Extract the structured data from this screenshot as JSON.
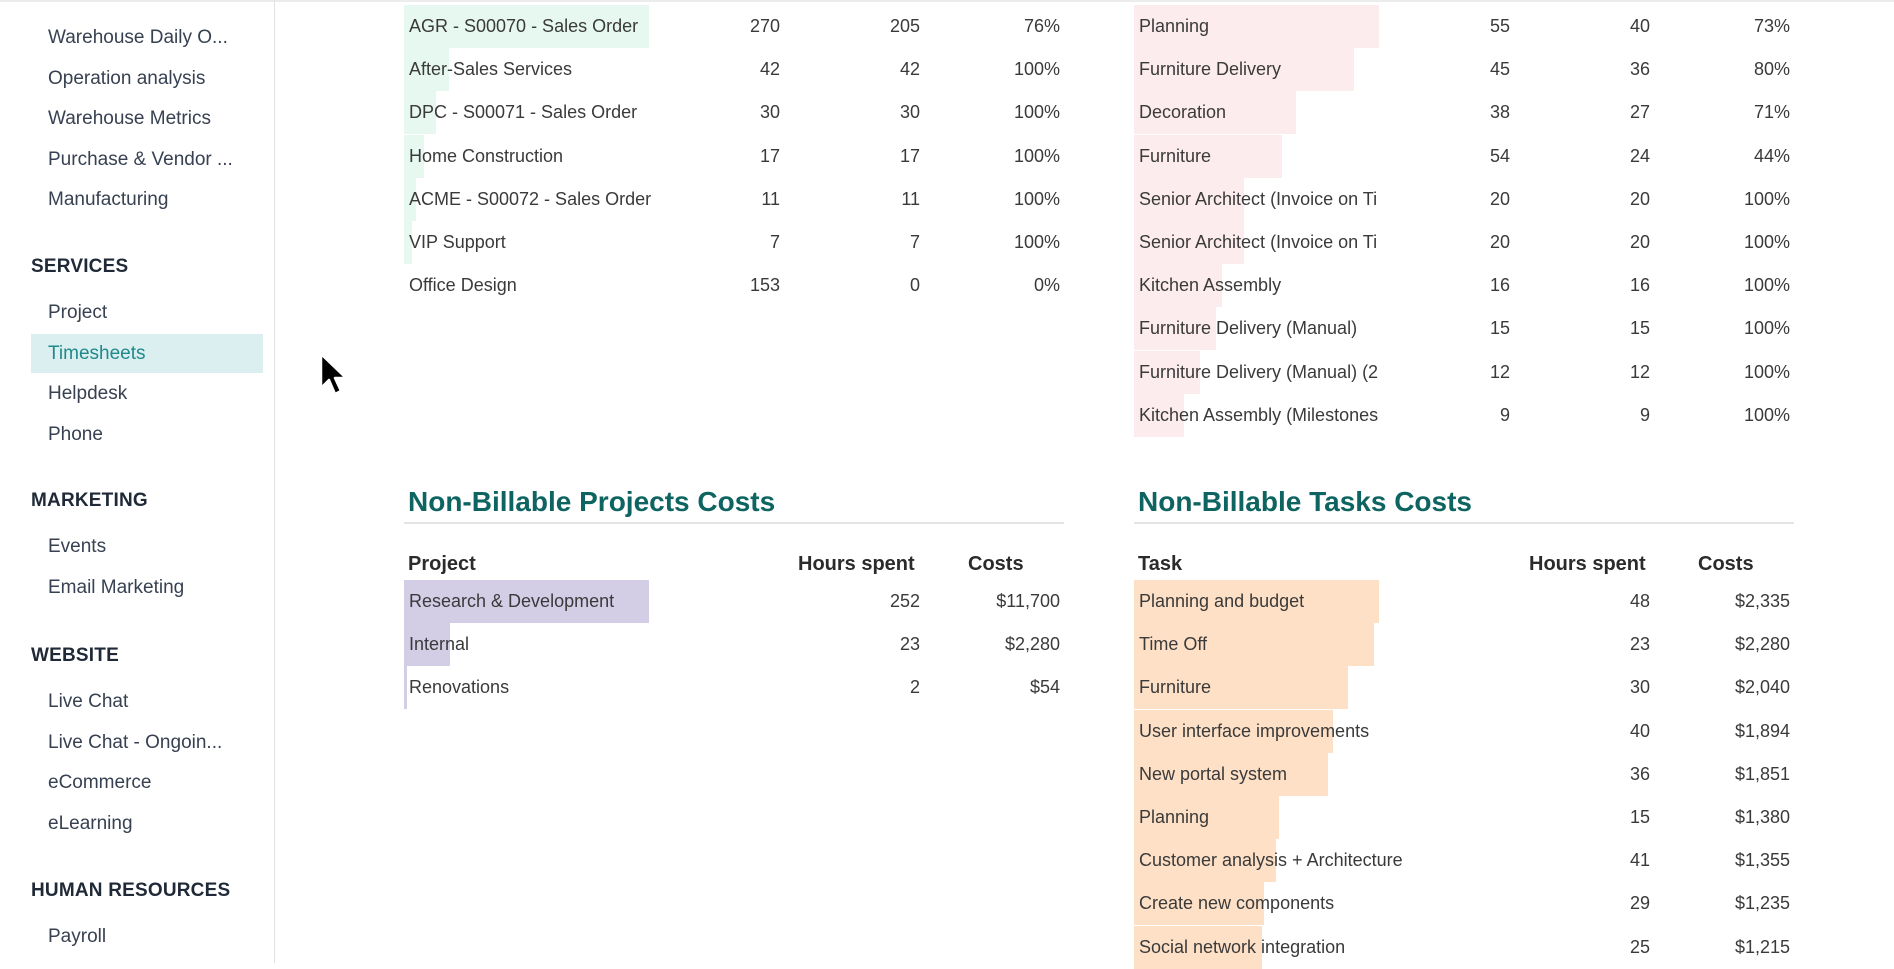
{
  "sidebar": {
    "items_top": [
      {
        "label": "Warehouse Daily O..."
      },
      {
        "label": "Operation analysis"
      },
      {
        "label": "Warehouse Metrics"
      },
      {
        "label": "Purchase & Vendor ..."
      },
      {
        "label": "Manufacturing"
      }
    ],
    "sections": [
      {
        "title": "SERVICES",
        "items": [
          {
            "label": "Project"
          },
          {
            "label": "Timesheets",
            "active": true
          },
          {
            "label": "Helpdesk"
          },
          {
            "label": "Phone"
          }
        ]
      },
      {
        "title": "MARKETING",
        "items": [
          {
            "label": "Events"
          },
          {
            "label": "Email Marketing"
          }
        ]
      },
      {
        "title": "WEBSITE",
        "items": [
          {
            "label": "Live Chat"
          },
          {
            "label": "Live Chat - Ongoin..."
          },
          {
            "label": "eCommerce"
          },
          {
            "label": "eLearning"
          }
        ]
      },
      {
        "title": "HUMAN RESOURCES",
        "items": [
          {
            "label": "Payroll"
          }
        ]
      }
    ]
  },
  "billable_projects": {
    "bar_color": "#e6f8f0",
    "rows": [
      {
        "name": "AGR - S00070 - Sales Order",
        "hours": "270",
        "billed": "205",
        "rate": "76%",
        "bar": 245
      },
      {
        "name": "After-Sales Services",
        "hours": "42",
        "billed": "42",
        "rate": "100%",
        "bar": 45
      },
      {
        "name": "DPC - S00071 - Sales Order",
        "hours": "30",
        "billed": "30",
        "rate": "100%",
        "bar": 32
      },
      {
        "name": "Home Construction",
        "hours": "17",
        "billed": "17",
        "rate": "100%",
        "bar": 20
      },
      {
        "name": "ACME - S00072 - Sales Order",
        "hours": "11",
        "billed": "11",
        "rate": "100%",
        "bar": 12
      },
      {
        "name": "VIP Support",
        "hours": "7",
        "billed": "7",
        "rate": "100%",
        "bar": 8
      },
      {
        "name": "Office Design",
        "hours": "153",
        "billed": "0",
        "rate": "0%",
        "bar": 0
      }
    ]
  },
  "billable_tasks": {
    "bar_color": "#fdeced",
    "rows": [
      {
        "name": "Planning",
        "hours": "55",
        "billed": "40",
        "rate": "73%",
        "bar": 245
      },
      {
        "name": "Furniture Delivery",
        "hours": "45",
        "billed": "36",
        "rate": "80%",
        "bar": 220
      },
      {
        "name": "Decoration",
        "hours": "38",
        "billed": "27",
        "rate": "71%",
        "bar": 162
      },
      {
        "name": "Furniture",
        "hours": "54",
        "billed": "24",
        "rate": "44%",
        "bar": 148
      },
      {
        "name": "Senior Architect (Invoice on Ti",
        "hours": "20",
        "billed": "20",
        "rate": "100%",
        "bar": 110
      },
      {
        "name": "Senior Architect (Invoice on Ti",
        "hours": "20",
        "billed": "20",
        "rate": "100%",
        "bar": 110
      },
      {
        "name": "Kitchen Assembly",
        "hours": "16",
        "billed": "16",
        "rate": "100%",
        "bar": 88
      },
      {
        "name": "Furniture Delivery (Manual)",
        "hours": "15",
        "billed": "15",
        "rate": "100%",
        "bar": 82
      },
      {
        "name": "Furniture Delivery (Manual)  (2",
        "hours": "12",
        "billed": "12",
        "rate": "100%",
        "bar": 66
      },
      {
        "name": "Kitchen Assembly (Milestones",
        "hours": "9",
        "billed": "9",
        "rate": "100%",
        "bar": 50
      }
    ]
  },
  "nonbillable_projects": {
    "title": "Non-Billable Projects Costs",
    "headers": {
      "name": "Project",
      "hours": "Hours spent",
      "costs": "Costs"
    },
    "bar_color": "#d3cde6",
    "rows": [
      {
        "name": "Research & Development",
        "hours": "252",
        "costs": "$11,700",
        "bar": 245
      },
      {
        "name": "Internal",
        "hours": "23",
        "costs": "$2,280",
        "bar": 46
      },
      {
        "name": "Renovations",
        "hours": "2",
        "costs": "$54",
        "bar": 3
      }
    ]
  },
  "nonbillable_tasks": {
    "title": "Non-Billable Tasks Costs",
    "headers": {
      "name": "Task",
      "hours": "Hours spent",
      "costs": "Costs"
    },
    "bar_color": "#fde0c6",
    "rows": [
      {
        "name": "Planning and budget",
        "hours": "48",
        "costs": "$2,335",
        "bar": 245
      },
      {
        "name": "Time Off",
        "hours": "23",
        "costs": "$2,280",
        "bar": 240
      },
      {
        "name": "Furniture",
        "hours": "30",
        "costs": "$2,040",
        "bar": 214
      },
      {
        "name": "User interface improvements",
        "hours": "40",
        "costs": "$1,894",
        "bar": 199
      },
      {
        "name": "New portal system",
        "hours": "36",
        "costs": "$1,851",
        "bar": 194
      },
      {
        "name": "Planning",
        "hours": "15",
        "costs": "$1,380",
        "bar": 145
      },
      {
        "name": "Customer analysis + Architecture",
        "hours": "41",
        "costs": "$1,355",
        "bar": 142
      },
      {
        "name": "Create new components",
        "hours": "29",
        "costs": "$1,235",
        "bar": 130
      },
      {
        "name": "Social network integration",
        "hours": "25",
        "costs": "$1,215",
        "bar": 128
      }
    ]
  }
}
